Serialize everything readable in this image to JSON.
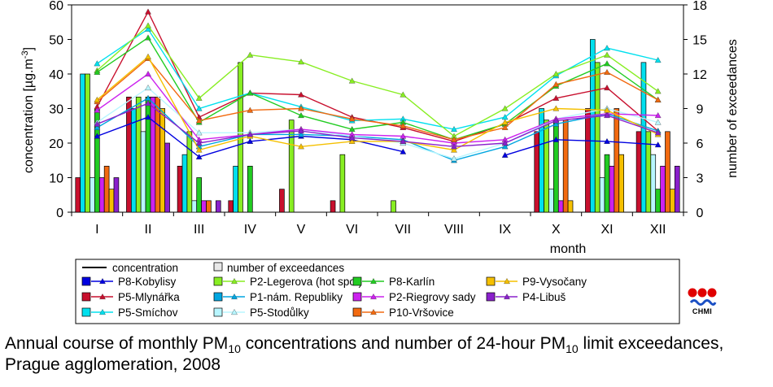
{
  "chart_data": {
    "type": "bar+line",
    "title": "",
    "categories": [
      "I",
      "II",
      "III",
      "IV",
      "V",
      "VI",
      "VII",
      "VIII",
      "IX",
      "X",
      "XI",
      "XII"
    ],
    "xlabel": "month",
    "ylabel_left": "concentration [µg.m-3]",
    "ylabel_right": "number of exceedances",
    "ylim_left": [
      0,
      60
    ],
    "ylim_right": [
      0,
      18
    ],
    "yticks_left": [
      0,
      10,
      20,
      30,
      40,
      50,
      60
    ],
    "yticks_right": [
      0,
      3,
      6,
      9,
      12,
      15,
      18
    ],
    "grid": false,
    "legend_placement": "bottom",
    "legend_headers": {
      "line": "concentration",
      "bar": "number of exceedances"
    },
    "series": [
      {
        "name": "P8-Kobylisy",
        "color": "#0000e0",
        "concentration": [
          22,
          27.5,
          16,
          20.5,
          22,
          21,
          17.5,
          null,
          16.5,
          21,
          20.5,
          19.5
        ],
        "exceedances": [
          null,
          null,
          null,
          null,
          null,
          null,
          null,
          null,
          null,
          null,
          null,
          null
        ]
      },
      {
        "name": "P5-Mlynářka",
        "color": "#c8102e",
        "concentration": [
          30.5,
          58,
          27.5,
          34.5,
          34,
          27.5,
          24.5,
          20.5,
          25.5,
          33,
          36,
          23.5
        ],
        "exceedances": [
          3,
          10,
          4,
          1,
          2,
          1,
          0,
          0,
          0,
          7,
          9,
          7
        ]
      },
      {
        "name": "P5-Smíchov",
        "color": "#00e0ee",
        "concentration": [
          43,
          53,
          30,
          34.5,
          30.5,
          26.5,
          27,
          24,
          27.5,
          39.5,
          47.5,
          44
        ],
        "exceedances": [
          12,
          9,
          5,
          4,
          0,
          0,
          0,
          0,
          0,
          9,
          15,
          13
        ]
      },
      {
        "name": "P2-Legerova (hot spot)",
        "color": "#88ee22",
        "concentration": [
          41,
          54,
          33,
          45.5,
          43.5,
          38,
          34,
          22,
          30,
          40,
          45.5,
          35
        ],
        "exceedances": [
          12,
          10,
          7,
          13,
          8,
          5,
          1,
          0,
          0,
          8,
          13,
          7
        ]
      },
      {
        "name": "P1-nám. Republiky",
        "color": "#00a6e0",
        "concentration": [
          24.5,
          33,
          19,
          22.5,
          22.5,
          22,
          21,
          15,
          19,
          25.5,
          28.5,
          23.5
        ],
        "exceedances": [
          null,
          null,
          null,
          null,
          null,
          null,
          null,
          null,
          null,
          null,
          null,
          null
        ]
      },
      {
        "name": "P5-Stodůlky",
        "color": "#b8f6ff",
        "concentration": [
          26,
          36,
          23,
          23,
          24,
          22,
          20,
          15.5,
          20,
          27,
          30,
          26
        ],
        "exceedances": [
          3,
          7,
          1,
          0,
          0,
          0,
          0,
          0,
          0,
          2,
          3,
          5
        ]
      },
      {
        "name": "P8-Karlín",
        "color": "#22cc22",
        "concentration": [
          40.5,
          50.5,
          26,
          34.5,
          28,
          24,
          26,
          21,
          25.5,
          36.5,
          43,
          32.5
        ],
        "exceedances": [
          9,
          10,
          3,
          4,
          0,
          0,
          0,
          0,
          0,
          8,
          5,
          2
        ]
      },
      {
        "name": "P2-Riegrovy sady",
        "color": "#cc22ee",
        "concentration": [
          29.5,
          40,
          21,
          22.5,
          24,
          22.5,
          22,
          20,
          21,
          27,
          28.5,
          28
        ],
        "exceedances": [
          3,
          10,
          1,
          0,
          0,
          0,
          0,
          0,
          0,
          1,
          4,
          4
        ]
      },
      {
        "name": "P10-Vršovice",
        "color": "#f26a10",
        "concentration": [
          32,
          44.5,
          26.5,
          29.5,
          30,
          27,
          25,
          21,
          24.5,
          37,
          40.5,
          32.5
        ],
        "exceedances": [
          4,
          10,
          1,
          0,
          0,
          0,
          0,
          0,
          0,
          8,
          9,
          7
        ]
      },
      {
        "name": "P9-Vysočany",
        "color": "#f5c000",
        "concentration": [
          32.5,
          45,
          18,
          22,
          19,
          20.5,
          20.5,
          18,
          26,
          30,
          29.5,
          22.5
        ],
        "exceedances": [
          2,
          9,
          0,
          0,
          0,
          0,
          0,
          0,
          0,
          1,
          5,
          2
        ]
      },
      {
        "name": "P4-Libuš",
        "color": "#8a20cc",
        "concentration": [
          25.5,
          31.5,
          20,
          22.5,
          23.5,
          21.5,
          20.5,
          19,
          20,
          26.5,
          28,
          23
        ],
        "exceedances": [
          3,
          6,
          1,
          0,
          0,
          0,
          0,
          0,
          0,
          0,
          0,
          4
        ]
      }
    ]
  },
  "caption": {
    "part1": "Annual course of monthly PM",
    "sub1": "10",
    "part2": " concentrations and number of 24-hour PM",
    "sub2": "10",
    "part3": " limit exceedances, Prague agglomeration, 2008"
  },
  "logo": {
    "text": "CHMI",
    "colors": [
      "#e00000",
      "#1a4fc4"
    ]
  }
}
